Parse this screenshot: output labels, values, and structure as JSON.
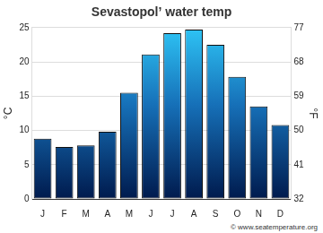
{
  "chart_data": {
    "type": "bar",
    "title": "Sevastopol’ water temp",
    "categories": [
      "J",
      "F",
      "M",
      "A",
      "M",
      "J",
      "J",
      "A",
      "S",
      "O",
      "N",
      "D"
    ],
    "values": [
      8.8,
      7.6,
      7.8,
      9.8,
      15.5,
      21.1,
      24.2,
      24.7,
      22.5,
      17.8,
      13.5,
      10.8
    ],
    "color": "#2ec4f5",
    "y_label": "°C",
    "y2_label": "°F",
    "ylim": [
      0,
      25
    ],
    "yticks": [
      0,
      5,
      10,
      15,
      20,
      25
    ],
    "y2lim": [
      32,
      77
    ],
    "y2ticks": [
      32,
      41,
      50,
      59,
      68,
      77
    ],
    "grid": true,
    "annotations": [
      "© www.seatemperature.org"
    ]
  }
}
